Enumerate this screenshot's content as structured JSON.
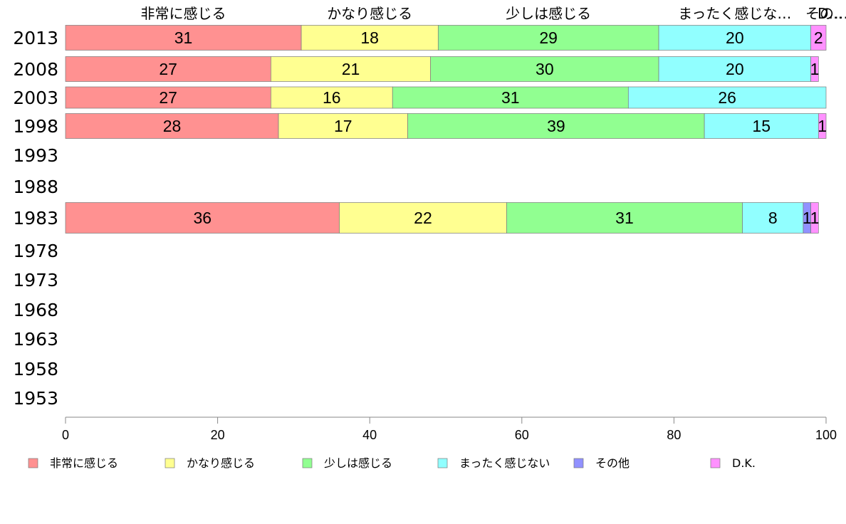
{
  "chart_data": {
    "type": "bar",
    "orientation": "horizontal",
    "stacked": true,
    "xlim": [
      0,
      100
    ],
    "x_ticks": [
      0,
      20,
      40,
      60,
      80,
      100
    ],
    "categories": [
      "2013",
      "2008",
      "2003",
      "1998",
      "1993",
      "1988",
      "1983",
      "1978",
      "1973",
      "1968",
      "1963",
      "1958",
      "1953"
    ],
    "series": [
      {
        "name": "非常に感じる",
        "color": "#ff9191",
        "values": [
          31,
          27,
          27,
          28,
          null,
          null,
          36,
          null,
          null,
          null,
          null,
          null,
          null
        ]
      },
      {
        "name": "かなり感じる",
        "color": "#ffff91",
        "values": [
          18,
          21,
          16,
          17,
          null,
          null,
          22,
          null,
          null,
          null,
          null,
          null,
          null
        ]
      },
      {
        "name": "少しは感じる",
        "color": "#91ff91",
        "values": [
          29,
          30,
          31,
          39,
          null,
          null,
          31,
          null,
          null,
          null,
          null,
          null,
          null
        ]
      },
      {
        "name": "まったく感じない",
        "color": "#91ffff",
        "values": [
          20,
          20,
          26,
          15,
          null,
          null,
          8,
          null,
          null,
          null,
          null,
          null,
          null
        ]
      },
      {
        "name": "その他",
        "color": "#9191ff",
        "values": [
          0,
          0,
          0,
          0,
          null,
          null,
          1,
          null,
          null,
          null,
          null,
          null,
          null
        ]
      },
      {
        "name": "D.K.",
        "color": "#ff91ff",
        "values": [
          2,
          1,
          0,
          1,
          null,
          null,
          1,
          null,
          null,
          null,
          null,
          null,
          null
        ]
      }
    ],
    "top_labels": [
      "非常に感じる",
      "かなり感じる",
      "少しは感じる",
      "まったく感じな…",
      "その…",
      "D…"
    ],
    "legend_position": "bottom",
    "grid": false
  }
}
